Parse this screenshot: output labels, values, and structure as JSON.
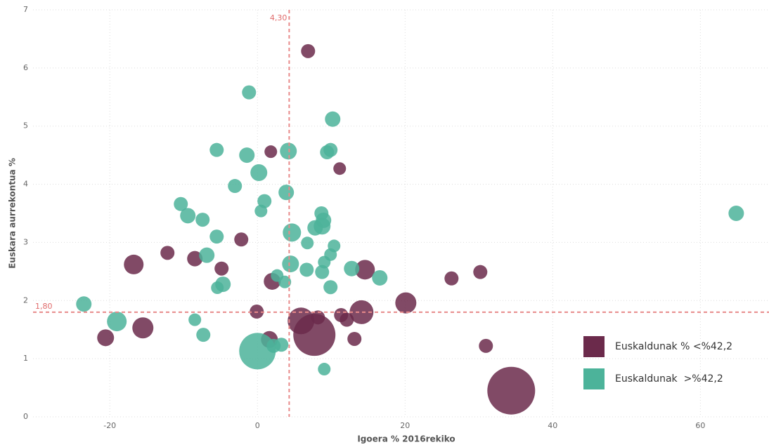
{
  "chart_data": {
    "type": "scatter",
    "x_label": "Igoera % 2016rekiko",
    "y_label": "Euskara aurrekontua %",
    "xlim": [
      -30.4,
      69.3
    ],
    "ylim": [
      0,
      7
    ],
    "xticks": [
      -20,
      0,
      20,
      40,
      60
    ],
    "yticks": [
      0,
      1,
      2,
      3,
      4,
      5,
      6,
      7
    ],
    "grid": true,
    "reference_lines": {
      "x": {
        "value": 4.3,
        "label": "4,30"
      },
      "y": {
        "value": 1.8,
        "label": "1,80"
      },
      "color": "#e88a8a"
    },
    "series": [
      {
        "name": "Euskaldunak % <%42,2",
        "color": "#6b2a4b",
        "x": [
          6.86,
          1.81,
          11.14,
          -2.19,
          -12.19,
          -16.76,
          -8.48,
          -4.86,
          2.0,
          14.57,
          26.29,
          30.19,
          20.1,
          -0.1,
          5.9,
          8.19,
          11.33,
          12.1,
          14.1,
          7.71,
          13.14,
          1.62,
          -15.52,
          -20.57,
          30.95,
          34.38
        ],
        "values": [
          6.29,
          4.56,
          4.27,
          3.05,
          2.82,
          2.62,
          2.72,
          2.55,
          2.33,
          2.53,
          2.38,
          2.49,
          1.96,
          1.81,
          1.65,
          1.71,
          1.75,
          1.67,
          1.8,
          1.41,
          1.34,
          1.33,
          1.53,
          1.36,
          1.22,
          0.45
        ],
        "sizes": [
          10,
          9,
          9,
          10,
          10,
          14,
          11,
          10,
          12,
          14,
          10,
          10,
          15,
          10,
          19,
          10,
          10,
          10,
          17,
          30,
          10,
          12,
          15,
          12,
          10,
          34
        ]
      },
      {
        "name": "Euskaldunak  >%42,2",
        "color": "#4cb39a",
        "x": [
          -1.14,
          10.19,
          -5.52,
          -1.43,
          4.19,
          9.43,
          9.9,
          0.19,
          -3.05,
          0.95,
          0.48,
          3.9,
          -10.38,
          -9.43,
          -7.43,
          8.67,
          8.95,
          8.76,
          7.81,
          4.67,
          -5.52,
          6.76,
          10.38,
          9.9,
          9.05,
          -6.86,
          4.48,
          6.67,
          8.76,
          12.76,
          16.57,
          2.67,
          3.71,
          -4.67,
          -5.43,
          9.9,
          -23.52,
          -19.05,
          -8.48,
          -7.33,
          2.19,
          3.24,
          0,
          9.05,
          64.86
        ],
        "values": [
          5.58,
          5.12,
          4.59,
          4.5,
          4.57,
          4.55,
          4.59,
          4.2,
          3.97,
          3.71,
          3.54,
          3.86,
          3.66,
          3.46,
          3.39,
          3.5,
          3.38,
          3.28,
          3.25,
          3.17,
          3.1,
          2.99,
          2.94,
          2.79,
          2.66,
          2.78,
          2.63,
          2.53,
          2.49,
          2.55,
          2.39,
          2.43,
          2.32,
          2.28,
          2.22,
          2.23,
          1.94,
          1.64,
          1.67,
          1.41,
          1.22,
          1.24,
          1.13,
          0.82,
          3.5
        ],
        "sizes": [
          10,
          11,
          10,
          11,
          12,
          10,
          10,
          12,
          10,
          10,
          9,
          11,
          10,
          11,
          10,
          10,
          11,
          12,
          11,
          13,
          10,
          9,
          9,
          9,
          9,
          11,
          12,
          10,
          10,
          11,
          11,
          9,
          9,
          11,
          9,
          10,
          11,
          14,
          9,
          10,
          10,
          10,
          26,
          9,
          11
        ]
      }
    ]
  }
}
